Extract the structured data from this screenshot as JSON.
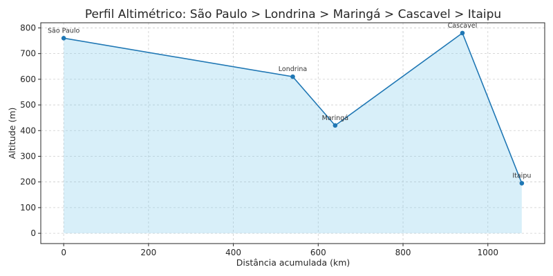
{
  "chart_data": {
    "type": "area",
    "title": "Perfil Altimétrico: São Paulo > Londrina > Maringá > Cascavel > Itaipu",
    "xlabel": "Distância acumulada (km)",
    "ylabel": "Altitude (m)",
    "xlim": [
      -54,
      1134
    ],
    "ylim": [
      -40,
      820
    ],
    "xticks": [
      0,
      200,
      400,
      600,
      800,
      1000
    ],
    "yticks": [
      0,
      100,
      200,
      300,
      400,
      500,
      600,
      700,
      800
    ],
    "grid": true,
    "points": [
      {
        "label": "São Paulo",
        "x": 0,
        "y": 760
      },
      {
        "label": "Londrina",
        "x": 540,
        "y": 610
      },
      {
        "label": "Maringá",
        "x": 640,
        "y": 420
      },
      {
        "label": "Cascavel",
        "x": 940,
        "y": 780
      },
      {
        "label": "Itaipu",
        "x": 1080,
        "y": 195
      }
    ],
    "line_color": "#1f77b4",
    "fill_color": "#87ceeb"
  }
}
